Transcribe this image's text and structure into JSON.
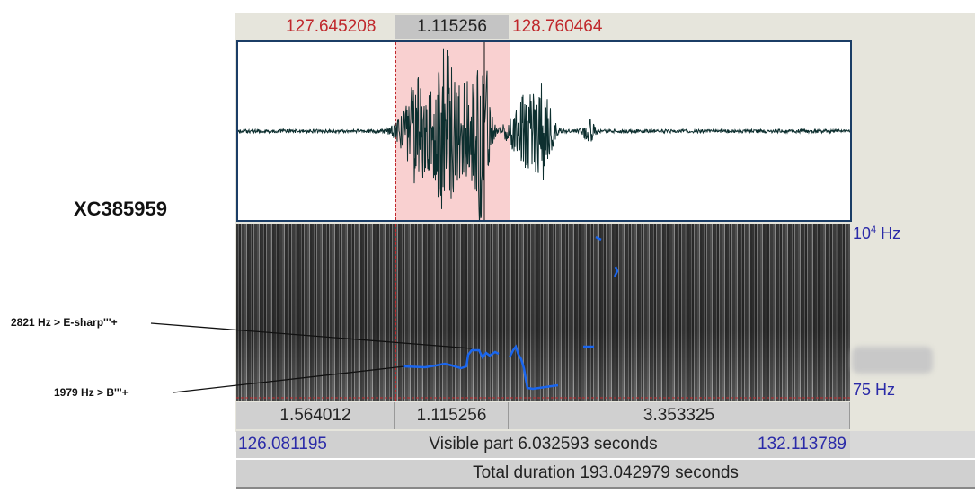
{
  "recording_id": "XC385959",
  "selection": {
    "start": "127.645208",
    "duration": "1.115256",
    "end": "128.760464"
  },
  "frequency_axis": {
    "top": "10",
    "top_exp": "4",
    "top_unit": " Hz",
    "bottom": "75 Hz"
  },
  "annotations": [
    {
      "label": "2821 Hz > E-sharp'''+"
    },
    {
      "label": "1979 Hz > B'''+"
    }
  ],
  "segments": [
    "1.564012",
    "1.115256",
    "3.353325"
  ],
  "visible": {
    "start": "126.081195",
    "label": "Visible part 6.032593 seconds",
    "end": "132.113789"
  },
  "total": {
    "label": "Total duration 193.042979 seconds"
  },
  "colors": {
    "selection": "#f9d0d0",
    "time_red": "#c0282c",
    "time_blue": "#2a2aa8",
    "pitch": "#1a66ee",
    "waveform": "#0d2f2f"
  }
}
